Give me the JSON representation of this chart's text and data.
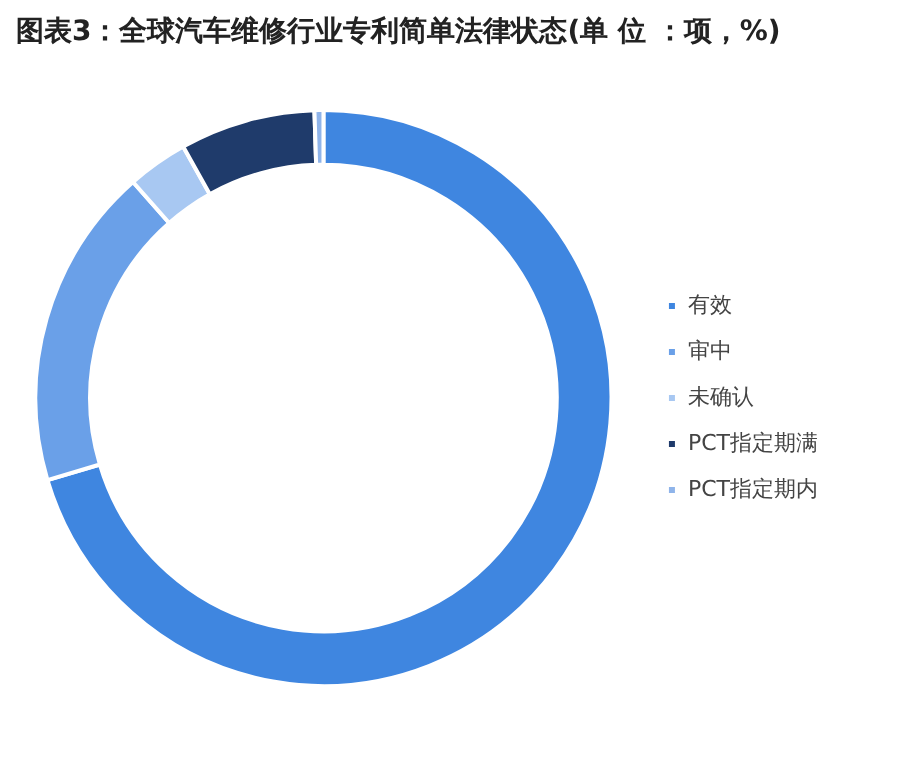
{
  "chart_data": {
    "type": "donut",
    "title": "图表3：全球汽车维修行业专利简单法律状态(单 位 ：项，%)",
    "categories": [
      "有效",
      "审中",
      "未确认",
      "PCT指定期满",
      "PCT指定期内"
    ],
    "values": [
      70.4,
      18.1,
      3.4,
      7.6,
      0.5
    ],
    "colors": [
      "#3f86e0",
      "#6aa0e8",
      "#a8c8f2",
      "#1f3b6b",
      "#8fb4ea"
    ],
    "legend": "right"
  }
}
